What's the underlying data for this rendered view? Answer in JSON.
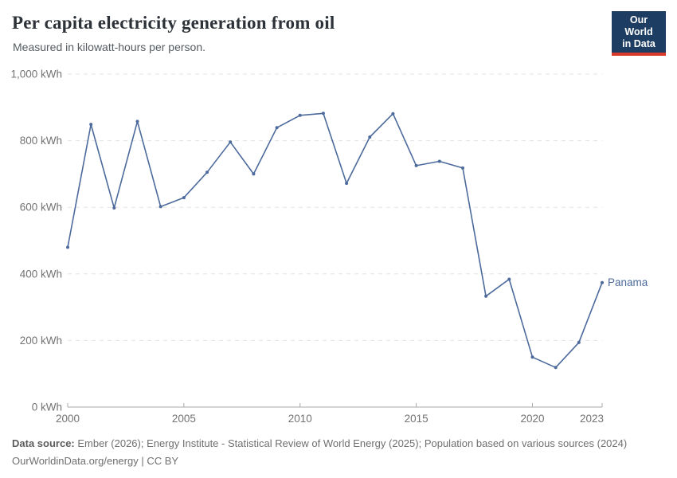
{
  "header": {
    "title": "Per capita electricity generation from oil",
    "subtitle": "Measured in kilowatt-hours per person.",
    "logo": {
      "line1": "Our World",
      "line2": "in Data"
    }
  },
  "chart_data": {
    "type": "line",
    "title": "Per capita electricity generation from oil",
    "xlabel": "",
    "ylabel": "kilowatt-hours per person",
    "x": [
      2000,
      2001,
      2002,
      2003,
      2004,
      2005,
      2006,
      2007,
      2008,
      2009,
      2010,
      2011,
      2012,
      2013,
      2014,
      2015,
      2016,
      2017,
      2018,
      2019,
      2020,
      2021,
      2022,
      2023
    ],
    "series": [
      {
        "name": "Panama",
        "color": "#4C6A9C",
        "values": [
          480,
          849,
          598,
          858,
          602,
          629,
          705,
          796,
          700,
          839,
          876,
          882,
          672,
          811,
          881,
          725,
          738,
          718,
          333,
          384,
          150,
          119,
          194,
          374
        ]
      }
    ],
    "xlim": [
      2000,
      2023
    ],
    "ylim": [
      0,
      1000
    ],
    "yticks": [
      0,
      200,
      400,
      600,
      800,
      1000
    ],
    "xticks": [
      2000,
      2005,
      2010,
      2015,
      2020,
      2023
    ],
    "ytick_suffix": " kWh",
    "grid": "horizontal-dashed",
    "legend": "end-of-line-label",
    "colors": {
      "grid": "#e3e3e3",
      "axis": "#a8a8a8",
      "tick_text": "#737373"
    }
  },
  "footer": {
    "source_label": "Data source:",
    "source_text": "Ember (2026); Energy Institute - Statistical Review of World Energy (2025); Population based on various sources (2024)",
    "credit": "OurWorldinData.org/energy | CC BY"
  }
}
